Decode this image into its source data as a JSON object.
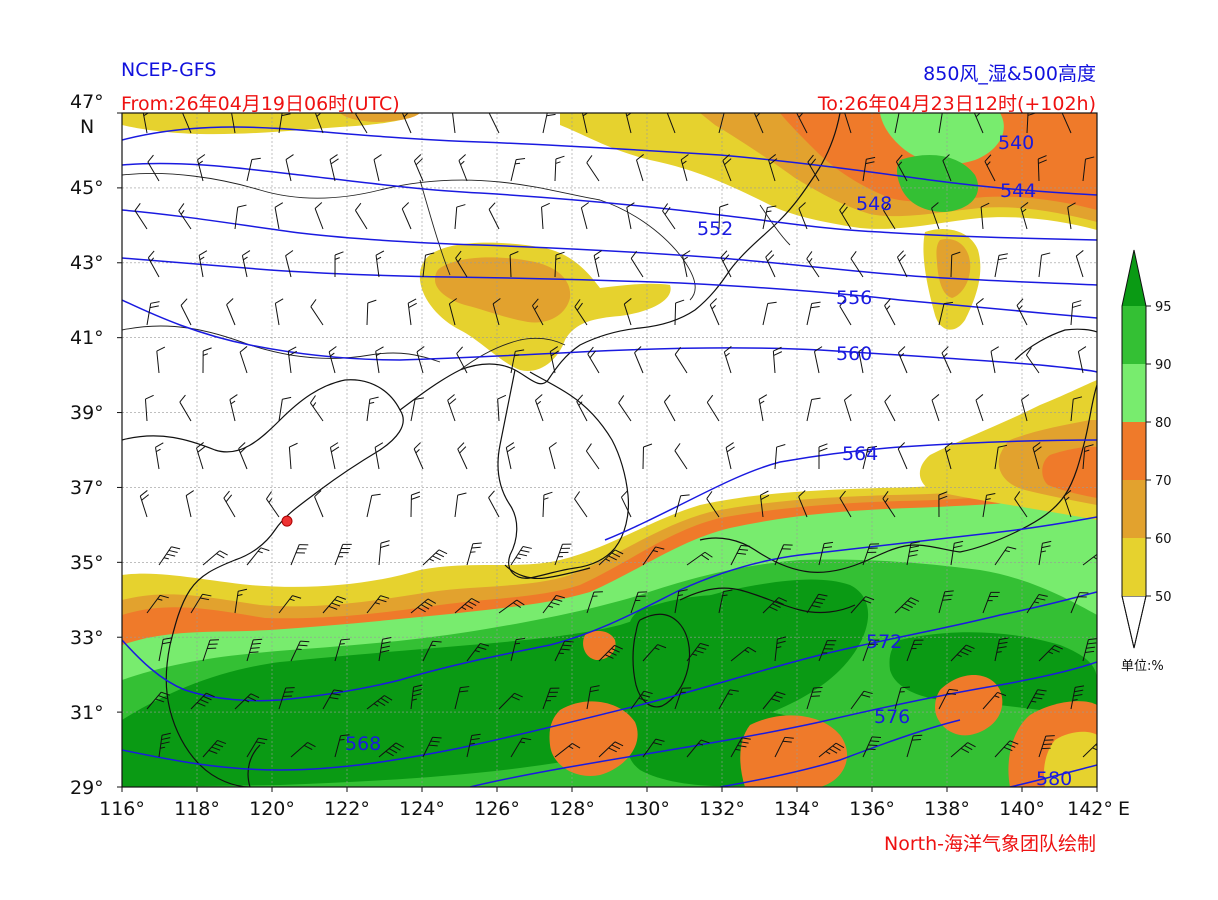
{
  "header": {
    "model": "NCEP-GFS",
    "product": "850风_湿&500高度",
    "from": "From:26年04月19日06时(UTC)",
    "to": "To:26年04月23日12时(+102h)",
    "credit": "North-海洋气象团队绘制"
  },
  "axes": {
    "lon_ticks": [
      "116°",
      "118°",
      "120°",
      "122°",
      "124°",
      "126°",
      "128°",
      "130°",
      "132°",
      "134°",
      "136°",
      "138°",
      "140°",
      "142°"
    ],
    "lon_unit": "E",
    "lat_ticks": [
      "29°",
      "31°",
      "33°",
      "35°",
      "37°",
      "39°",
      "41°",
      "43°",
      "45°",
      "47°"
    ],
    "lat_unit": "N",
    "lon_range": [
      116,
      142
    ],
    "lat_range": [
      29,
      47
    ]
  },
  "colorbar": {
    "levels": [
      "50",
      "60",
      "70",
      "80",
      "90",
      "95"
    ],
    "colors": [
      "#e6d22e",
      "#e2a22e",
      "#ef7a2a",
      "#78ec6e",
      "#34c034",
      "#0a9a14"
    ],
    "unit_label": "单位:%"
  },
  "contours": {
    "labels": [
      "540",
      "544",
      "548",
      "552",
      "556",
      "560",
      "564",
      "568",
      "572",
      "576",
      "580"
    ],
    "color": "#1a1ae0"
  },
  "marker": {
    "name": "station-marker",
    "lon": 120.4,
    "lat": 36.1
  }
}
